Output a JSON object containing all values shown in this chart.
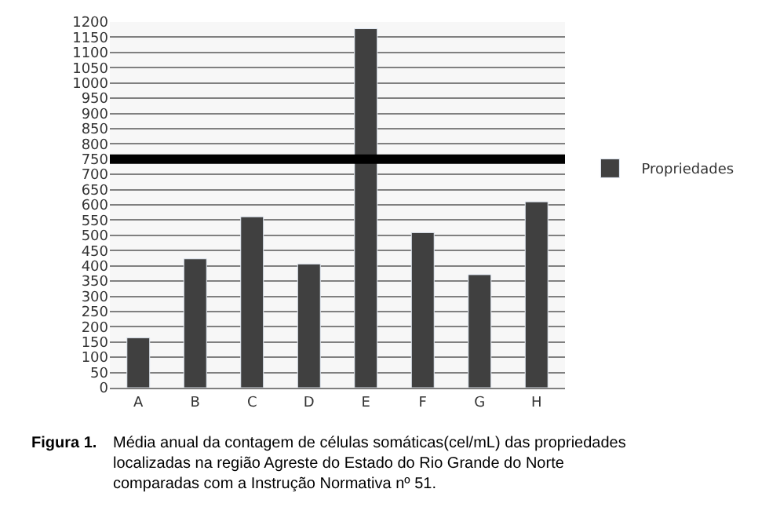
{
  "chart_data": {
    "type": "bar",
    "categories": [
      "A",
      "B",
      "C",
      "D",
      "E",
      "F",
      "G",
      "H"
    ],
    "series": [
      {
        "name": "Propriedades",
        "color": "#404040",
        "values": [
          164,
          423,
          561,
          406,
          1178,
          509,
          371,
          610
        ]
      }
    ],
    "ylim": [
      0,
      1200
    ],
    "yticks": [
      0,
      50,
      100,
      150,
      200,
      250,
      300,
      350,
      400,
      450,
      500,
      550,
      600,
      650,
      700,
      750,
      800,
      850,
      900,
      950,
      1000,
      1050,
      1100,
      1150,
      1200
    ],
    "grid": "y",
    "legend": "right",
    "ref_lines": [
      {
        "axis": "y",
        "value": 750,
        "color": "#000000"
      }
    ],
    "annotations": [
      "Figura 1.",
      "Média anual da contagem de células somáticas(cel/mL) das propriedades localizadas na região Agreste do Estado do Rio Grande do Norte comparadas com a Instrução Normativa nº 51."
    ]
  }
}
